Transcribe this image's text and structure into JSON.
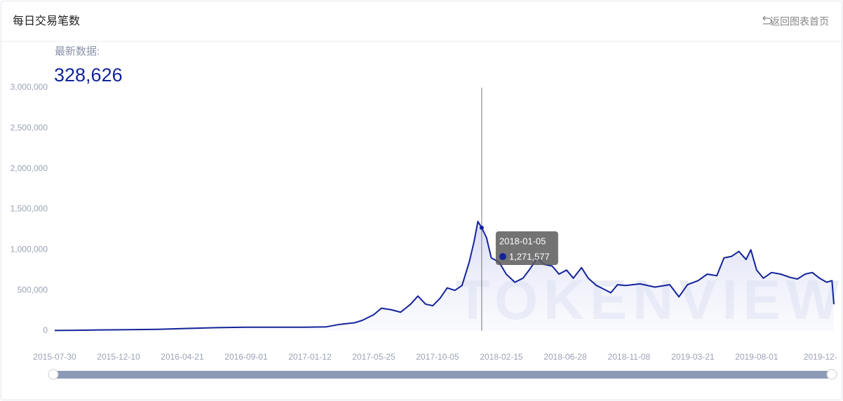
{
  "header": {
    "title": "每日交易笔数",
    "back": "返回图表首页"
  },
  "latest": {
    "label": "最新数据:",
    "value": "328,626"
  },
  "chart_data": {
    "type": "line",
    "color": "#13249a",
    "watermark": "TOKENVIEW",
    "x": [
      "2015-07-30",
      "2015-09-15",
      "2015-11-01",
      "2016-01-01",
      "2016-03-01",
      "2016-05-01",
      "2016-07-01",
      "2016-09-01",
      "2016-11-01",
      "2017-01-01",
      "2017-02-15",
      "2017-03-15",
      "2017-04-15",
      "2017-05-01",
      "2017-05-25",
      "2017-06-10",
      "2017-07-01",
      "2017-07-20",
      "2017-08-10",
      "2017-08-25",
      "2017-09-10",
      "2017-09-25",
      "2017-10-10",
      "2017-10-25",
      "2017-11-10",
      "2017-11-25",
      "2017-12-10",
      "2017-12-20",
      "2017-12-28",
      "2018-01-05",
      "2018-01-15",
      "2018-01-25",
      "2018-02-10",
      "2018-02-25",
      "2018-03-15",
      "2018-04-01",
      "2018-04-15",
      "2018-05-01",
      "2018-05-15",
      "2018-06-01",
      "2018-06-15",
      "2018-07-01",
      "2018-07-15",
      "2018-08-01",
      "2018-08-15",
      "2018-09-01",
      "2018-09-15",
      "2018-10-01",
      "2018-10-15",
      "2018-11-01",
      "2018-12-01",
      "2019-01-01",
      "2019-02-01",
      "2019-02-20",
      "2019-03-10",
      "2019-04-01",
      "2019-04-20",
      "2019-05-10",
      "2019-05-25",
      "2019-06-10",
      "2019-06-25",
      "2019-07-10",
      "2019-07-20",
      "2019-08-01",
      "2019-08-15",
      "2019-09-01",
      "2019-09-20",
      "2019-10-10",
      "2019-10-25",
      "2019-11-10",
      "2019-11-25",
      "2019-12-10",
      "2019-12-25",
      "2020-01-05",
      "2020-01-09"
    ],
    "values": [
      5000,
      8000,
      12000,
      15000,
      20000,
      30000,
      40000,
      45000,
      45000,
      45000,
      50000,
      80000,
      100000,
      130000,
      200000,
      280000,
      260000,
      230000,
      330000,
      430000,
      330000,
      310000,
      400000,
      530000,
      500000,
      560000,
      850000,
      1100000,
      1350000,
      1271577,
      1150000,
      900000,
      850000,
      700000,
      600000,
      650000,
      760000,
      900000,
      820000,
      800000,
      700000,
      750000,
      650000,
      780000,
      650000,
      560000,
      520000,
      470000,
      570000,
      560000,
      580000,
      540000,
      570000,
      420000,
      570000,
      620000,
      700000,
      680000,
      900000,
      920000,
      980000,
      880000,
      1000000,
      750000,
      650000,
      720000,
      700000,
      660000,
      640000,
      700000,
      720000,
      650000,
      600000,
      620000,
      328626
    ],
    "xlim": [
      "2015-07-30",
      "2020-01-09"
    ],
    "xticks": [
      "2015-07-30",
      "2015-12-10",
      "2016-04-21",
      "2016-09-01",
      "2017-01-12",
      "2017-05-25",
      "2017-10-05",
      "2018-02-15",
      "2018-06-28",
      "2018-11-08",
      "2019-03-21",
      "2019-08-01",
      {
        "value": "2019-12-12",
        "label": "2019-12-"
      }
    ],
    "ylim": [
      0,
      3000000
    ],
    "yticks": [
      0,
      {
        "value": 500000,
        "label": "500,000"
      },
      {
        "value": 1000000,
        "label": "1,000,000"
      },
      {
        "value": 1500000,
        "label": "1,500,000"
      },
      {
        "value": 2000000,
        "label": "2,000,000"
      },
      {
        "value": 2500000,
        "label": "2,500,000"
      },
      {
        "value": 3000000,
        "label": "3,000,000"
      }
    ],
    "tooltip": {
      "x": "2018-01-05",
      "value": 1271577,
      "label": "1,271,577"
    }
  }
}
